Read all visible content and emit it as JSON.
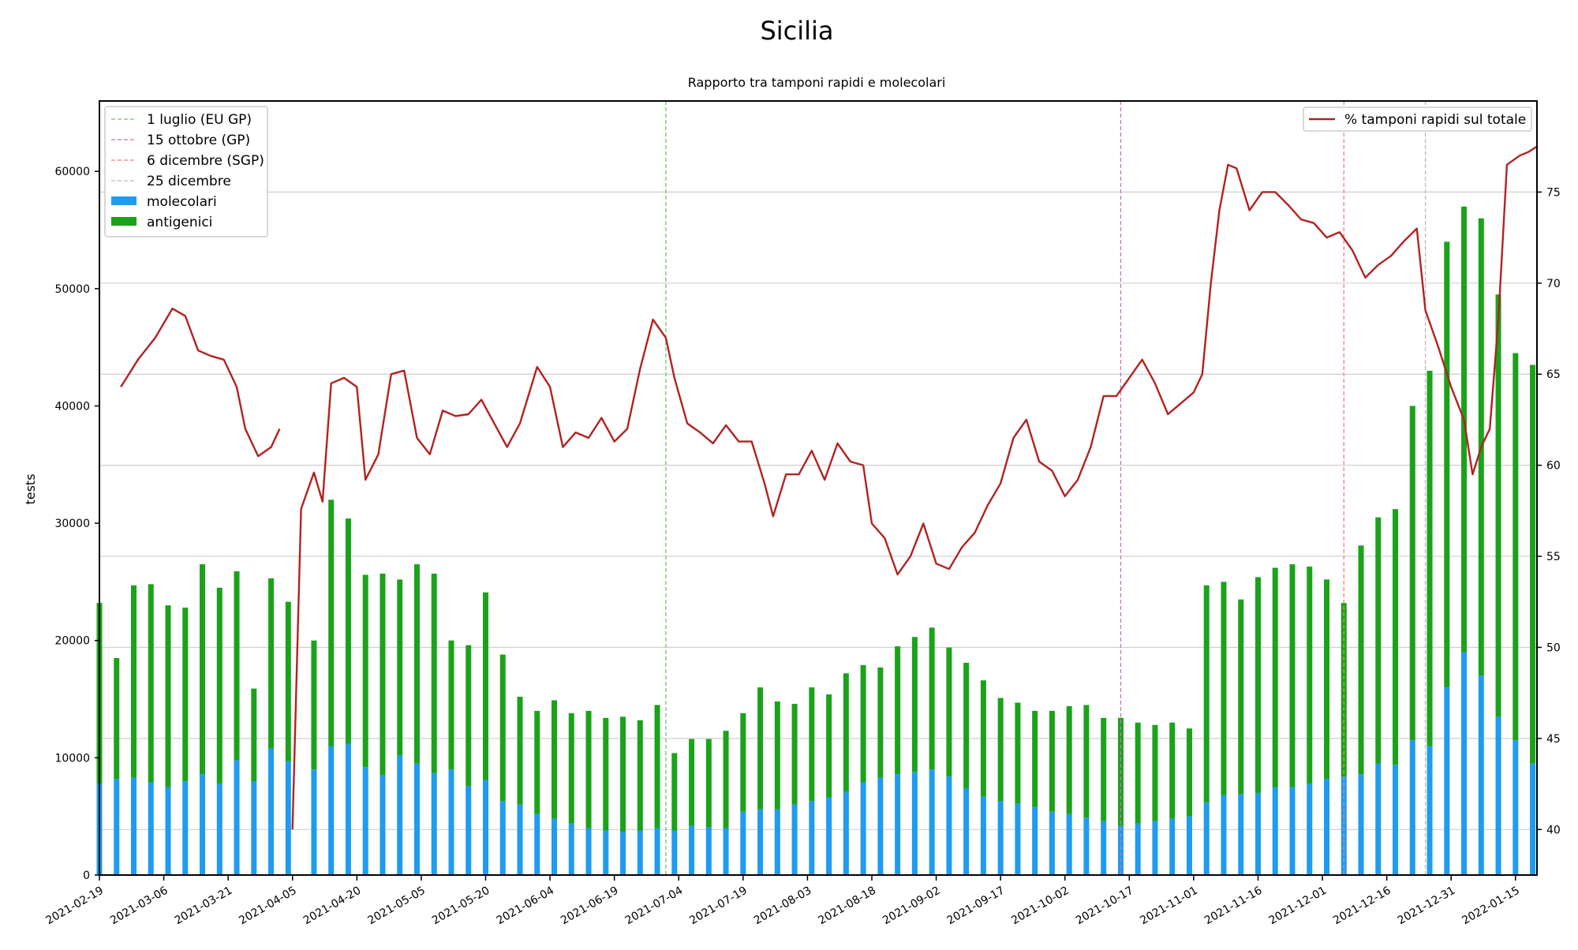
{
  "page": {
    "title": "Sicilia",
    "subtitle": "Rapporto tra tamponi rapidi e molecolari"
  },
  "chart_data": {
    "type": "bar",
    "title": "Sicilia",
    "subtitle": "Rapporto tra tamponi rapidi e molecolari",
    "ylabel": "tests",
    "ylabel_right": "",
    "ylim": [
      0,
      66000
    ],
    "ylim_right": [
      37.5,
      80
    ],
    "x_range": [
      "2021-02-19",
      "2022-01-20"
    ],
    "grid": true,
    "y_ticks": [
      0,
      10000,
      20000,
      30000,
      40000,
      50000,
      60000
    ],
    "y_ticks_right": [
      40,
      45,
      50,
      55,
      60,
      65,
      70,
      75
    ],
    "x_tick_labels": [
      "2021-02-19",
      "2021-03-06",
      "2021-03-21",
      "2021-04-05",
      "2021-04-20",
      "2021-05-05",
      "2021-05-20",
      "2021-06-04",
      "2021-06-19",
      "2021-07-04",
      "2021-07-19",
      "2021-08-03",
      "2021-08-18",
      "2021-09-02",
      "2021-09-17",
      "2021-10-02",
      "2021-10-17",
      "2021-11-01",
      "2021-11-16",
      "2021-12-01",
      "2021-12-16",
      "2021-12-31",
      "2022-01-15"
    ],
    "markers": [
      {
        "label": "1 luglio (EU GP)",
        "date": "2021-07-01",
        "color": "#6cc46c"
      },
      {
        "label": "15 ottobre (GP)",
        "date": "2021-10-15",
        "color": "#d070b8"
      },
      {
        "label": "6 dicembre (SGP)",
        "date": "2021-12-06",
        "color": "#f08080"
      },
      {
        "label": "25 dicembre",
        "date": "2021-12-25",
        "color": "#bbbbbb"
      }
    ],
    "bar_series": [
      {
        "name": "molecolari",
        "color": "#1f9bef",
        "role": "bottom stacked bar"
      },
      {
        "name": "antigenici",
        "color": "#1aa31a",
        "role": "top stacked bar"
      }
    ],
    "line_series": {
      "name": "% tamponi rapidi sul totale",
      "color": "#b22222",
      "axis": "right"
    },
    "bars": [
      {
        "x": "2021-02-19",
        "molecolari": 7800,
        "antigenici": 15400
      },
      {
        "x": "2021-02-23",
        "molecolari": 8200,
        "antigenici": 10300
      },
      {
        "x": "2021-02-27",
        "molecolari": 8300,
        "antigenici": 16400
      },
      {
        "x": "2021-03-03",
        "molecolari": 7900,
        "antigenici": 16900
      },
      {
        "x": "2021-03-07",
        "molecolari": 7500,
        "antigenici": 15500
      },
      {
        "x": "2021-03-11",
        "molecolari": 8000,
        "antigenici": 14800
      },
      {
        "x": "2021-03-15",
        "molecolari": 8600,
        "antigenici": 17900
      },
      {
        "x": "2021-03-19",
        "molecolari": 7800,
        "antigenici": 16700
      },
      {
        "x": "2021-03-23",
        "molecolari": 9800,
        "antigenici": 16100
      },
      {
        "x": "2021-03-27",
        "molecolari": 8000,
        "antigenici": 7900
      },
      {
        "x": "2021-03-31",
        "molecolari": 10800,
        "antigenici": 14500
      },
      {
        "x": "2021-04-04",
        "molecolari": 9700,
        "antigenici": 13600
      },
      {
        "x": "2021-04-10",
        "molecolari": 9000,
        "antigenici": 11000
      },
      {
        "x": "2021-04-14",
        "molecolari": 11000,
        "antigenici": 21000
      },
      {
        "x": "2021-04-18",
        "molecolari": 11200,
        "antigenici": 19200
      },
      {
        "x": "2021-04-22",
        "molecolari": 9200,
        "antigenici": 16400
      },
      {
        "x": "2021-04-26",
        "molecolari": 8500,
        "antigenici": 17200
      },
      {
        "x": "2021-04-30",
        "molecolari": 10200,
        "antigenici": 15000
      },
      {
        "x": "2021-05-04",
        "molecolari": 9500,
        "antigenici": 17000
      },
      {
        "x": "2021-05-08",
        "molecolari": 8700,
        "antigenici": 17000
      },
      {
        "x": "2021-05-12",
        "molecolari": 9000,
        "antigenici": 11000
      },
      {
        "x": "2021-05-16",
        "molecolari": 7600,
        "antigenici": 12000
      },
      {
        "x": "2021-05-20",
        "molecolari": 8100,
        "antigenici": 16000
      },
      {
        "x": "2021-05-24",
        "molecolari": 6300,
        "antigenici": 12500
      },
      {
        "x": "2021-05-28",
        "molecolari": 6000,
        "antigenici": 9200
      },
      {
        "x": "2021-06-01",
        "molecolari": 5200,
        "antigenici": 8800
      },
      {
        "x": "2021-06-05",
        "molecolari": 4800,
        "antigenici": 10100
      },
      {
        "x": "2021-06-09",
        "molecolari": 4400,
        "antigenici": 9400
      },
      {
        "x": "2021-06-13",
        "molecolari": 4000,
        "antigenici": 10000
      },
      {
        "x": "2021-06-17",
        "molecolari": 3800,
        "antigenici": 9600
      },
      {
        "x": "2021-06-21",
        "molecolari": 3700,
        "antigenici": 9800
      },
      {
        "x": "2021-06-25",
        "molecolari": 3800,
        "antigenici": 9400
      },
      {
        "x": "2021-06-29",
        "molecolari": 4000,
        "antigenici": 10500
      },
      {
        "x": "2021-07-03",
        "molecolari": 3800,
        "antigenici": 6600
      },
      {
        "x": "2021-07-07",
        "molecolari": 4200,
        "antigenici": 7400
      },
      {
        "x": "2021-07-11",
        "molecolari": 4100,
        "antigenici": 7500
      },
      {
        "x": "2021-07-15",
        "molecolari": 4000,
        "antigenici": 8300
      },
      {
        "x": "2021-07-19",
        "molecolari": 5400,
        "antigenici": 8400
      },
      {
        "x": "2021-07-23",
        "molecolari": 5600,
        "antigenici": 10400
      },
      {
        "x": "2021-07-27",
        "molecolari": 5600,
        "antigenici": 9200
      },
      {
        "x": "2021-07-31",
        "molecolari": 6000,
        "antigenici": 8600
      },
      {
        "x": "2021-08-04",
        "molecolari": 6300,
        "antigenici": 9700
      },
      {
        "x": "2021-08-08",
        "molecolari": 6600,
        "antigenici": 8800
      },
      {
        "x": "2021-08-12",
        "molecolari": 7100,
        "antigenici": 10100
      },
      {
        "x": "2021-08-16",
        "molecolari": 7900,
        "antigenici": 10000
      },
      {
        "x": "2021-08-20",
        "molecolari": 8300,
        "antigenici": 9400
      },
      {
        "x": "2021-08-24",
        "molecolari": 8600,
        "antigenici": 10900
      },
      {
        "x": "2021-08-28",
        "molecolari": 8800,
        "antigenici": 11500
      },
      {
        "x": "2021-09-01",
        "molecolari": 9000,
        "antigenici": 12100
      },
      {
        "x": "2021-09-05",
        "molecolari": 8400,
        "antigenici": 11000
      },
      {
        "x": "2021-09-09",
        "molecolari": 7400,
        "antigenici": 10700
      },
      {
        "x": "2021-09-13",
        "molecolari": 6700,
        "antigenici": 9900
      },
      {
        "x": "2021-09-17",
        "molecolari": 6300,
        "antigenici": 8800
      },
      {
        "x": "2021-09-21",
        "molecolari": 6100,
        "antigenici": 8600
      },
      {
        "x": "2021-09-25",
        "molecolari": 5800,
        "antigenici": 8200
      },
      {
        "x": "2021-09-29",
        "molecolari": 5400,
        "antigenici": 8600
      },
      {
        "x": "2021-10-03",
        "molecolari": 5200,
        "antigenici": 9200
      },
      {
        "x": "2021-10-07",
        "molecolari": 4900,
        "antigenici": 9600
      },
      {
        "x": "2021-10-11",
        "molecolari": 4600,
        "antigenici": 8800
      },
      {
        "x": "2021-10-15",
        "molecolari": 4200,
        "antigenici": 9200
      },
      {
        "x": "2021-10-19",
        "molecolari": 4400,
        "antigenici": 8600
      },
      {
        "x": "2021-10-23",
        "molecolari": 4600,
        "antigenici": 8200
      },
      {
        "x": "2021-10-27",
        "molecolari": 4800,
        "antigenici": 8200
      },
      {
        "x": "2021-10-31",
        "molecolari": 5000,
        "antigenici": 7500
      },
      {
        "x": "2021-11-04",
        "molecolari": 6200,
        "antigenici": 18500
      },
      {
        "x": "2021-11-08",
        "molecolari": 6800,
        "antigenici": 18200
      },
      {
        "x": "2021-11-12",
        "molecolari": 6900,
        "antigenici": 16600
      },
      {
        "x": "2021-11-16",
        "molecolari": 7000,
        "antigenici": 18400
      },
      {
        "x": "2021-11-20",
        "molecolari": 7500,
        "antigenici": 18700
      },
      {
        "x": "2021-11-24",
        "molecolari": 7500,
        "antigenici": 19000
      },
      {
        "x": "2021-11-28",
        "molecolari": 7800,
        "antigenici": 18500
      },
      {
        "x": "2021-12-02",
        "molecolari": 8200,
        "antigenici": 17000
      },
      {
        "x": "2021-12-06",
        "molecolari": 8400,
        "antigenici": 14800
      },
      {
        "x": "2021-12-10",
        "molecolari": 8600,
        "antigenici": 19500
      },
      {
        "x": "2021-12-14",
        "molecolari": 9500,
        "antigenici": 21000
      },
      {
        "x": "2021-12-18",
        "molecolari": 9400,
        "antigenici": 21800
      },
      {
        "x": "2021-12-22",
        "molecolari": 11500,
        "antigenici": 28500
      },
      {
        "x": "2021-12-26",
        "molecolari": 11000,
        "antigenici": 32000
      },
      {
        "x": "2021-12-30",
        "molecolari": 16000,
        "antigenici": 38000
      },
      {
        "x": "2022-01-03",
        "molecolari": 19000,
        "antigenici": 38000
      },
      {
        "x": "2022-01-07",
        "molecolari": 17000,
        "antigenici": 39000
      },
      {
        "x": "2022-01-11",
        "molecolari": 13500,
        "antigenici": 36000
      },
      {
        "x": "2022-01-15",
        "molecolari": 11500,
        "antigenici": 33000
      },
      {
        "x": "2022-01-19",
        "molecolari": 9500,
        "antigenici": 34000
      }
    ],
    "line": [
      {
        "x": "2021-02-24",
        "y": 64.3
      },
      {
        "x": "2021-02-28",
        "y": 65.8
      },
      {
        "x": "2021-03-04",
        "y": 67.0
      },
      {
        "x": "2021-03-08",
        "y": 68.6
      },
      {
        "x": "2021-03-11",
        "y": 68.2
      },
      {
        "x": "2021-03-14",
        "y": 66.3
      },
      {
        "x": "2021-03-17",
        "y": 66.0
      },
      {
        "x": "2021-03-20",
        "y": 65.8
      },
      {
        "x": "2021-03-23",
        "y": 64.3
      },
      {
        "x": "2021-03-25",
        "y": 62.0
      },
      {
        "x": "2021-03-28",
        "y": 60.5
      },
      {
        "x": "2021-03-31",
        "y": 61.0
      },
      {
        "x": "2021-04-02",
        "y": 62.0
      },
      {
        "x": "2021-04-05",
        "y": 40.0
      },
      {
        "x": "2021-04-07",
        "y": 57.6
      },
      {
        "x": "2021-04-10",
        "y": 59.6
      },
      {
        "x": "2021-04-12",
        "y": 58.0
      },
      {
        "x": "2021-04-14",
        "y": 64.5
      },
      {
        "x": "2021-04-17",
        "y": 64.8
      },
      {
        "x": "2021-04-20",
        "y": 64.3
      },
      {
        "x": "2021-04-22",
        "y": 59.2
      },
      {
        "x": "2021-04-25",
        "y": 60.6
      },
      {
        "x": "2021-04-28",
        "y": 65.0
      },
      {
        "x": "2021-05-01",
        "y": 65.2
      },
      {
        "x": "2021-05-04",
        "y": 61.5
      },
      {
        "x": "2021-05-07",
        "y": 60.6
      },
      {
        "x": "2021-05-10",
        "y": 63.0
      },
      {
        "x": "2021-05-13",
        "y": 62.7
      },
      {
        "x": "2021-05-16",
        "y": 62.8
      },
      {
        "x": "2021-05-19",
        "y": 63.6
      },
      {
        "x": "2021-05-22",
        "y": 62.3
      },
      {
        "x": "2021-05-25",
        "y": 61.0
      },
      {
        "x": "2021-05-28",
        "y": 62.3
      },
      {
        "x": "2021-06-01",
        "y": 65.4
      },
      {
        "x": "2021-06-04",
        "y": 64.3
      },
      {
        "x": "2021-06-07",
        "y": 61.0
      },
      {
        "x": "2021-06-10",
        "y": 61.8
      },
      {
        "x": "2021-06-13",
        "y": 61.5
      },
      {
        "x": "2021-06-16",
        "y": 62.6
      },
      {
        "x": "2021-06-19",
        "y": 61.3
      },
      {
        "x": "2021-06-22",
        "y": 62.0
      },
      {
        "x": "2021-06-25",
        "y": 65.3
      },
      {
        "x": "2021-06-28",
        "y": 68.0
      },
      {
        "x": "2021-07-01",
        "y": 67.0
      },
      {
        "x": "2021-07-03",
        "y": 64.8
      },
      {
        "x": "2021-07-06",
        "y": 62.3
      },
      {
        "x": "2021-07-09",
        "y": 61.8
      },
      {
        "x": "2021-07-12",
        "y": 61.2
      },
      {
        "x": "2021-07-15",
        "y": 62.2
      },
      {
        "x": "2021-07-18",
        "y": 61.3
      },
      {
        "x": "2021-07-21",
        "y": 61.3
      },
      {
        "x": "2021-07-24",
        "y": 59.0
      },
      {
        "x": "2021-07-26",
        "y": 57.2
      },
      {
        "x": "2021-07-29",
        "y": 59.5
      },
      {
        "x": "2021-08-01",
        "y": 59.5
      },
      {
        "x": "2021-08-04",
        "y": 60.8
      },
      {
        "x": "2021-08-07",
        "y": 59.2
      },
      {
        "x": "2021-08-10",
        "y": 61.2
      },
      {
        "x": "2021-08-13",
        "y": 60.2
      },
      {
        "x": "2021-08-16",
        "y": 60.0
      },
      {
        "x": "2021-08-18",
        "y": 56.8
      },
      {
        "x": "2021-08-21",
        "y": 56.0
      },
      {
        "x": "2021-08-24",
        "y": 54.0
      },
      {
        "x": "2021-08-27",
        "y": 55.0
      },
      {
        "x": "2021-08-30",
        "y": 56.8
      },
      {
        "x": "2021-09-02",
        "y": 54.6
      },
      {
        "x": "2021-09-05",
        "y": 54.3
      },
      {
        "x": "2021-09-08",
        "y": 55.5
      },
      {
        "x": "2021-09-11",
        "y": 56.3
      },
      {
        "x": "2021-09-14",
        "y": 57.8
      },
      {
        "x": "2021-09-17",
        "y": 59.0
      },
      {
        "x": "2021-09-20",
        "y": 61.5
      },
      {
        "x": "2021-09-23",
        "y": 62.5
      },
      {
        "x": "2021-09-26",
        "y": 60.2
      },
      {
        "x": "2021-09-29",
        "y": 59.7
      },
      {
        "x": "2021-10-02",
        "y": 58.3
      },
      {
        "x": "2021-10-05",
        "y": 59.2
      },
      {
        "x": "2021-10-08",
        "y": 61.0
      },
      {
        "x": "2021-10-11",
        "y": 63.8
      },
      {
        "x": "2021-10-14",
        "y": 63.8
      },
      {
        "x": "2021-10-17",
        "y": 64.8
      },
      {
        "x": "2021-10-20",
        "y": 65.8
      },
      {
        "x": "2021-10-23",
        "y": 64.5
      },
      {
        "x": "2021-10-26",
        "y": 62.8
      },
      {
        "x": "2021-10-29",
        "y": 63.4
      },
      {
        "x": "2021-11-01",
        "y": 64.0
      },
      {
        "x": "2021-11-03",
        "y": 65.0
      },
      {
        "x": "2021-11-05",
        "y": 70.0
      },
      {
        "x": "2021-11-07",
        "y": 74.0
      },
      {
        "x": "2021-11-09",
        "y": 76.5
      },
      {
        "x": "2021-11-11",
        "y": 76.3
      },
      {
        "x": "2021-11-14",
        "y": 74.0
      },
      {
        "x": "2021-11-17",
        "y": 75.0
      },
      {
        "x": "2021-11-20",
        "y": 75.0
      },
      {
        "x": "2021-11-23",
        "y": 74.3
      },
      {
        "x": "2021-11-26",
        "y": 73.5
      },
      {
        "x": "2021-11-29",
        "y": 73.3
      },
      {
        "x": "2021-12-02",
        "y": 72.5
      },
      {
        "x": "2021-12-05",
        "y": 72.8
      },
      {
        "x": "2021-12-08",
        "y": 71.8
      },
      {
        "x": "2021-12-11",
        "y": 70.3
      },
      {
        "x": "2021-12-14",
        "y": 71.0
      },
      {
        "x": "2021-12-17",
        "y": 71.5
      },
      {
        "x": "2021-12-20",
        "y": 72.3
      },
      {
        "x": "2021-12-23",
        "y": 73.0
      },
      {
        "x": "2021-12-25",
        "y": 68.5
      },
      {
        "x": "2021-12-28",
        "y": 66.5
      },
      {
        "x": "2021-12-31",
        "y": 64.3
      },
      {
        "x": "2022-01-03",
        "y": 62.5
      },
      {
        "x": "2022-01-05",
        "y": 59.5
      },
      {
        "x": "2022-01-07",
        "y": 61.0
      },
      {
        "x": "2022-01-09",
        "y": 62.0
      },
      {
        "x": "2022-01-11",
        "y": 68.0
      },
      {
        "x": "2022-01-13",
        "y": 76.5
      },
      {
        "x": "2022-01-16",
        "y": 77.0
      },
      {
        "x": "2022-01-18",
        "y": 77.2
      },
      {
        "x": "2022-01-20",
        "y": 77.5
      }
    ]
  }
}
